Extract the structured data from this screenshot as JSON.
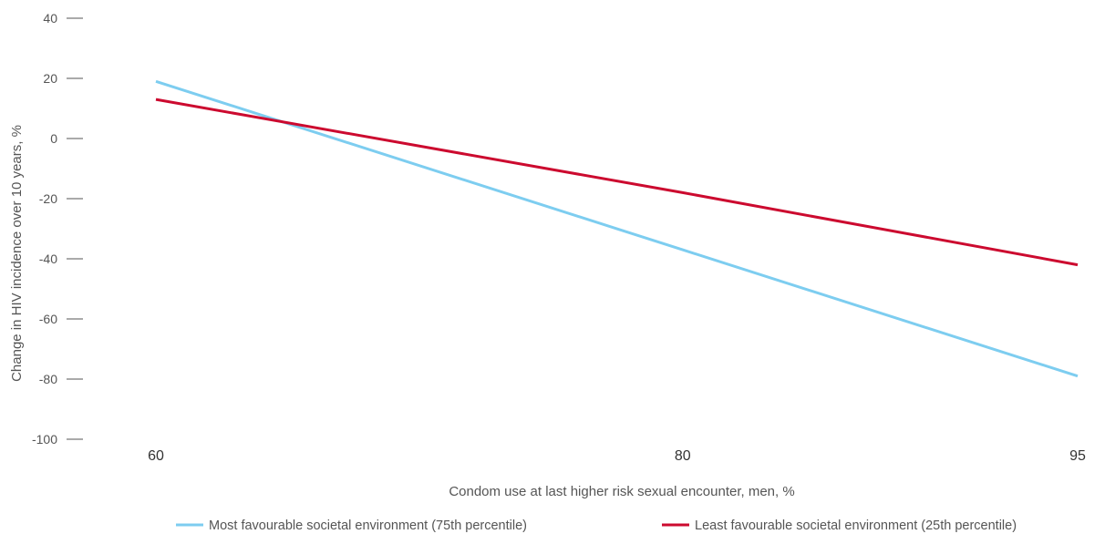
{
  "chart_data": {
    "type": "line",
    "title": "",
    "xlabel": "Condom use at last higher risk sexual encounter, men, %",
    "ylabel": "Change in HIV incidence over 10 years, %",
    "ylim": [
      -100,
      40
    ],
    "yticks": [
      40,
      20,
      0,
      -20,
      -40,
      -60,
      -80,
      -100
    ],
    "categories": [
      "60",
      "80",
      "95"
    ],
    "grid": false,
    "legend_position": "bottom",
    "series": [
      {
        "name": "Most favourable societal environment (75th percentile)",
        "color": "#7dcdf0",
        "values": [
          19,
          -37,
          -79
        ]
      },
      {
        "name": "Least favourable societal environment (25th percentile)",
        "color": "#cc0a2f",
        "values": [
          13,
          -18,
          -42
        ]
      }
    ]
  }
}
